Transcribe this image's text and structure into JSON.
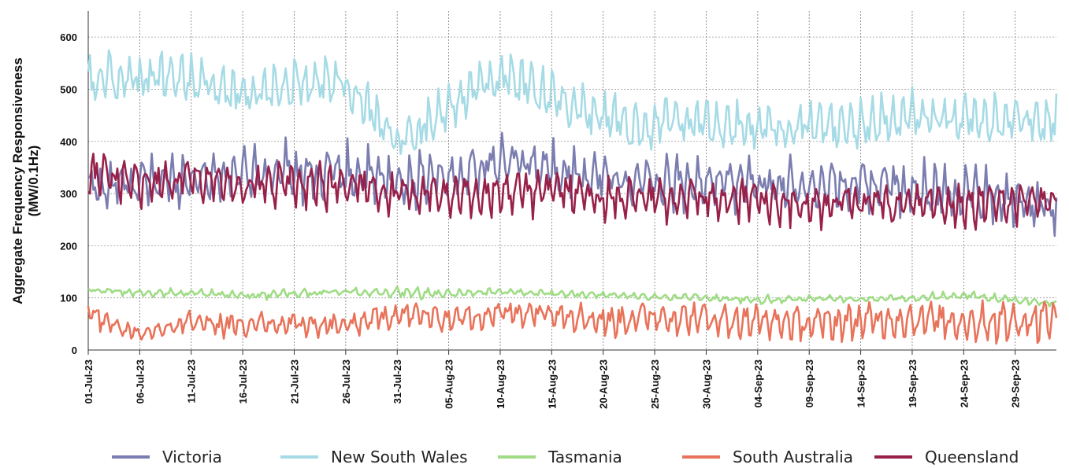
{
  "chart_data": {
    "type": "line",
    "title": "",
    "ylabel": "Aggregate Frequency Responsiveness",
    "ylabel_units": "(MW/0.1Hz)",
    "xlabel": "",
    "ylim": [
      0,
      650
    ],
    "yticks": [
      0,
      100,
      200,
      300,
      400,
      500,
      600
    ],
    "xlim": [
      "2023-07-01",
      "2023-10-03"
    ],
    "xticks": [
      "01-Jul-23",
      "06-Jul-23",
      "11-Jul-23",
      "16-Jul-23",
      "21-Jul-23",
      "26-Jul-23",
      "31-Jul-23",
      "05-Aug-23",
      "10-Aug-23",
      "15-Aug-23",
      "20-Aug-23",
      "25-Aug-23",
      "30-Aug-23",
      "04-Sep-23",
      "09-Sep-23",
      "14-Sep-23",
      "19-Sep-23",
      "24-Sep-23",
      "29-Sep-23"
    ],
    "grid": true,
    "legend_position": "bottom",
    "series": [
      {
        "name": "Victoria",
        "color": "#7b7db0",
        "dates": [
          "2023-07-01",
          "2023-07-06",
          "2023-07-11",
          "2023-07-16",
          "2023-07-21",
          "2023-07-26",
          "2023-07-31",
          "2023-08-05",
          "2023-08-10",
          "2023-08-15",
          "2023-08-20",
          "2023-08-25",
          "2023-08-30",
          "2023-09-04",
          "2023-09-09",
          "2023-09-14",
          "2023-09-19",
          "2023-09-24",
          "2023-09-29",
          "2023-10-02"
        ],
        "base": [
          310,
          320,
          330,
          340,
          345,
          340,
          320,
          330,
          360,
          350,
          330,
          320,
          320,
          320,
          310,
          320,
          310,
          300,
          290,
          270
        ],
        "amp": [
          120,
          110,
          110,
          120,
          130,
          130,
          120,
          120,
          110,
          120,
          110,
          110,
          110,
          120,
          120,
          120,
          120,
          120,
          130,
          120
        ]
      },
      {
        "name": "New South Wales",
        "color": "#a6dbe6",
        "dates": [
          "2023-07-01",
          "2023-07-06",
          "2023-07-11",
          "2023-07-16",
          "2023-07-21",
          "2023-07-26",
          "2023-07-31",
          "2023-08-05",
          "2023-08-10",
          "2023-08-15",
          "2023-08-20",
          "2023-08-25",
          "2023-08-30",
          "2023-09-04",
          "2023-09-09",
          "2023-09-14",
          "2023-09-19",
          "2023-09-24",
          "2023-09-29",
          "2023-10-02"
        ],
        "base": [
          520,
          520,
          520,
          490,
          510,
          510,
          400,
          460,
          530,
          490,
          440,
          430,
          440,
          420,
          430,
          430,
          450,
          440,
          440,
          440
        ],
        "amp": [
          120,
          110,
          110,
          100,
          110,
          120,
          100,
          110,
          110,
          110,
          120,
          120,
          110,
          110,
          110,
          110,
          120,
          110,
          110,
          110
        ]
      },
      {
        "name": "Tasmania",
        "color": "#9fdc85",
        "dates": [
          "2023-07-01",
          "2023-07-06",
          "2023-07-11",
          "2023-07-16",
          "2023-07-21",
          "2023-07-26",
          "2023-07-31",
          "2023-08-05",
          "2023-08-10",
          "2023-08-15",
          "2023-08-20",
          "2023-08-25",
          "2023-08-30",
          "2023-09-04",
          "2023-09-09",
          "2023-09-14",
          "2023-09-19",
          "2023-09-24",
          "2023-09-29",
          "2023-10-02"
        ],
        "base": [
          116,
          108,
          110,
          104,
          108,
          112,
          108,
          108,
          112,
          108,
          106,
          102,
          100,
          96,
          98,
          98,
          100,
          104,
          96,
          90
        ],
        "amp": [
          6,
          22,
          14,
          22,
          18,
          14,
          26,
          22,
          18,
          16,
          14,
          18,
          18,
          22,
          16,
          16,
          18,
          18,
          18,
          16
        ]
      },
      {
        "name": "South Australia",
        "color": "#e8735a",
        "dates": [
          "2023-07-01",
          "2023-07-06",
          "2023-07-11",
          "2023-07-16",
          "2023-07-21",
          "2023-07-26",
          "2023-07-31",
          "2023-08-05",
          "2023-08-10",
          "2023-08-15",
          "2023-08-20",
          "2023-08-25",
          "2023-08-30",
          "2023-09-04",
          "2023-09-09",
          "2023-09-14",
          "2023-09-19",
          "2023-09-24",
          "2023-09-29",
          "2023-10-02"
        ],
        "base": [
          70,
          30,
          55,
          45,
          50,
          45,
          70,
          60,
          70,
          75,
          55,
          65,
          60,
          55,
          50,
          55,
          60,
          55,
          55,
          60
        ],
        "amp": [
          60,
          30,
          50,
          60,
          60,
          60,
          60,
          60,
          60,
          60,
          70,
          70,
          80,
          80,
          70,
          80,
          80,
          90,
          90,
          90
        ]
      },
      {
        "name": "Queensland",
        "color": "#98214a",
        "dates": [
          "2023-07-01",
          "2023-07-06",
          "2023-07-11",
          "2023-07-16",
          "2023-07-21",
          "2023-07-26",
          "2023-07-31",
          "2023-08-05",
          "2023-08-10",
          "2023-08-15",
          "2023-08-20",
          "2023-08-25",
          "2023-08-30",
          "2023-09-04",
          "2023-09-09",
          "2023-09-14",
          "2023-09-19",
          "2023-09-24",
          "2023-09-29",
          "2023-10-02"
        ],
        "base": [
          340,
          320,
          330,
          310,
          320,
          320,
          300,
          300,
          300,
          310,
          290,
          290,
          290,
          290,
          280,
          280,
          280,
          280,
          280,
          280
        ],
        "amp": [
          100,
          90,
          90,
          100,
          100,
          100,
          90,
          90,
          100,
          110,
          100,
          90,
          90,
          90,
          90,
          90,
          90,
          90,
          90,
          90
        ]
      }
    ]
  }
}
